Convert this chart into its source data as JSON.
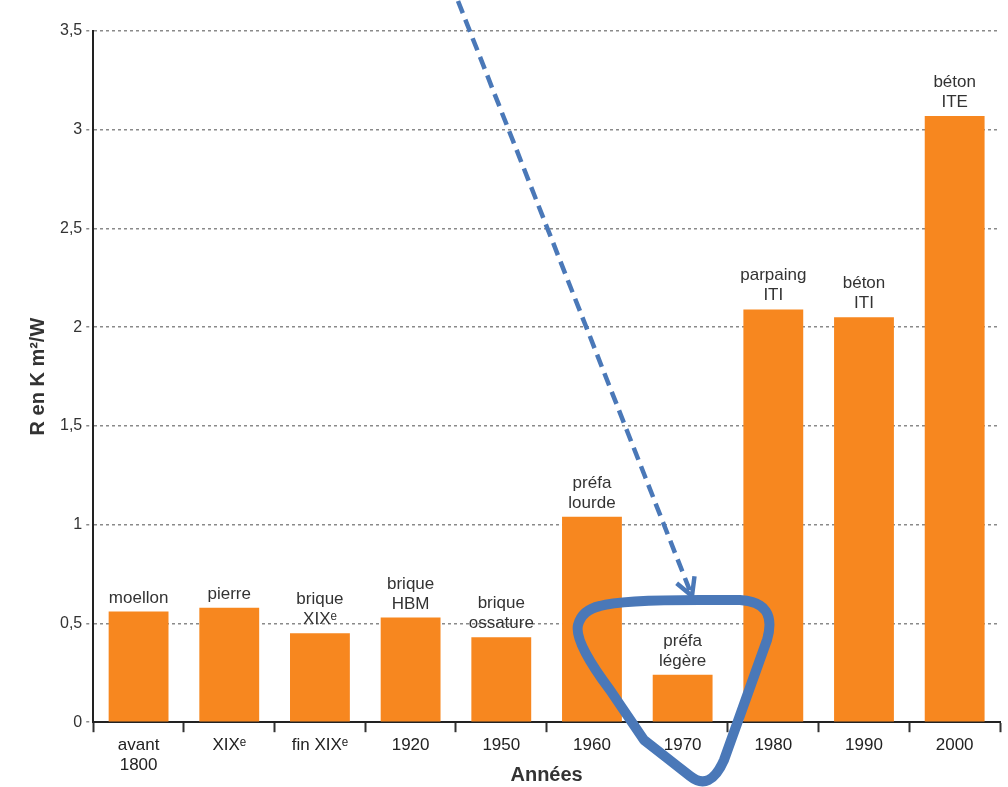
{
  "chart_data": {
    "type": "bar",
    "categories": [
      "avant 1800",
      "XIXᵉ",
      "fin XIXᵉ",
      "1920",
      "1950",
      "1960",
      "1970",
      "1980",
      "1990",
      "2000"
    ],
    "values": [
      0.56,
      0.58,
      0.45,
      0.53,
      0.43,
      1.04,
      0.24,
      2.09,
      2.05,
      3.07
    ],
    "color": "#f7871f",
    "xlabel": "Années",
    "ylabel": "R en K m²/W",
    "ylim": [
      0,
      3.5
    ],
    "yticks": [
      0,
      {
        "value": 0.5,
        "label": "0,5"
      },
      1,
      {
        "value": 1.5,
        "label": "1,5"
      },
      2,
      {
        "value": 2.5,
        "label": "2,5"
      },
      3,
      {
        "value": 3.5,
        "label": "3,5"
      }
    ],
    "grid": "y",
    "annotations": [
      {
        "text": "moellon",
        "x": "avant 1800",
        "y": 0.56
      },
      {
        "text": "pierre",
        "x": "XIXᵉ",
        "y": 0.58
      },
      {
        "text": "brique XIXᵉ",
        "x": "fin XIXᵉ",
        "y": 0.45
      },
      {
        "text": "brique HBM",
        "x": "1920",
        "y": 0.53
      },
      {
        "text": "brique ossature",
        "x": "1950",
        "y": 0.43
      },
      {
        "text": "préfa lourde",
        "x": "1960",
        "y": 1.04
      },
      {
        "text": "préfa légère",
        "x": "1970",
        "y": 0.24
      },
      {
        "text": "parpaing ITI",
        "x": "1980",
        "y": 2.09
      },
      {
        "text": "béton ITI",
        "x": "1990",
        "y": 2.05
      },
      {
        "text": "béton ITE",
        "x": "2000",
        "y": 3.07
      }
    ]
  }
}
